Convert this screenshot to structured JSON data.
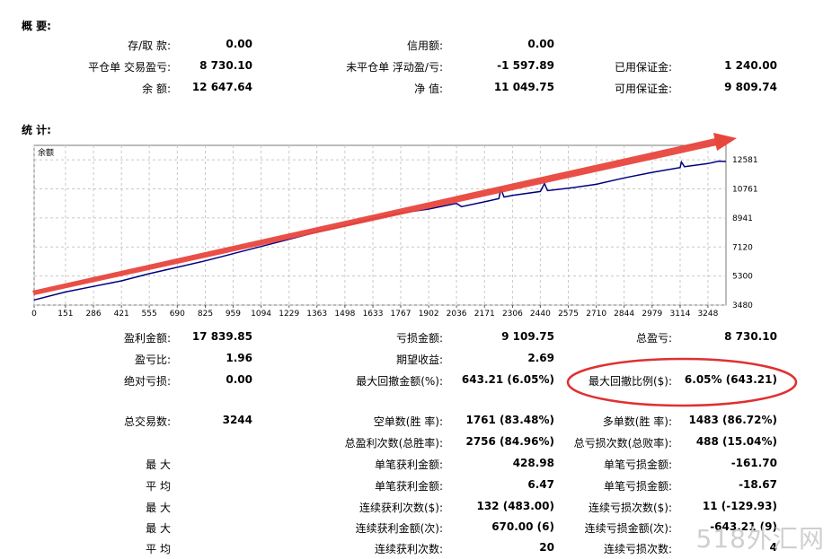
{
  "summary": {
    "title": "概 要:",
    "rows": [
      [
        {
          "label": "存/取 款:",
          "value": "0.00"
        },
        {
          "label": "信用额:",
          "value": "0.00"
        },
        {
          "label": "",
          "value": ""
        }
      ],
      [
        {
          "label": "平仓单 交易盈亏:",
          "value": "8 730.10"
        },
        {
          "label": "未平仓单 浮动盈/亏:",
          "value": "-1 597.89"
        },
        {
          "label": "已用保证金:",
          "value": "1 240.00"
        }
      ],
      [
        {
          "label": "余 额:",
          "value": "12 647.64"
        },
        {
          "label": "净 值:",
          "value": "11 049.75"
        },
        {
          "label": "可用保证金:",
          "value": "9 809.74"
        }
      ]
    ]
  },
  "stats": {
    "title": "统 计:",
    "rows": [
      [
        {
          "label": "盈利金额:",
          "value": "17 839.85"
        },
        {
          "label": "亏损金额:",
          "value": "9 109.75"
        },
        {
          "label": "总盈亏:",
          "value": "8 730.10"
        }
      ],
      [
        {
          "label": "盈亏比:",
          "value": "1.96"
        },
        {
          "label": "期望收益:",
          "value": "2.69"
        },
        {
          "label": "",
          "value": ""
        }
      ],
      [
        {
          "label": "绝对亏损:",
          "value": "0.00"
        },
        {
          "label": "最大回撤金额(%):",
          "value": "643.21 (6.05%)"
        },
        {
          "label": "最大回撤比例($):",
          "value": "6.05% (643.21)"
        }
      ],
      [
        {
          "label": "总交易数:",
          "value": "3244"
        },
        {
          "label": "空单数(胜 率):",
          "value": "1761 (83.48%)"
        },
        {
          "label": "多单数(胜 率):",
          "value": "1483 (86.72%)"
        }
      ],
      [
        {
          "label": "",
          "value": ""
        },
        {
          "label": "总盈利次数(总胜率):",
          "value": "2756 (84.96%)"
        },
        {
          "label": "总亏损次数(总败率):",
          "value": "488 (15.04%)"
        }
      ],
      [
        {
          "label": "最 大",
          "value": ""
        },
        {
          "label": "单笔获利金额:",
          "value": "428.98"
        },
        {
          "label": "单笔亏损金额:",
          "value": "-161.70"
        }
      ],
      [
        {
          "label": "平 均",
          "value": ""
        },
        {
          "label": "单笔获利金额:",
          "value": "6.47"
        },
        {
          "label": "单笔亏损金额:",
          "value": "-18.67"
        }
      ],
      [
        {
          "label": "最 大",
          "value": ""
        },
        {
          "label": "连续获利次数($):",
          "value": "132 (483.00)"
        },
        {
          "label": "连续亏损次数($):",
          "value": "11 (-129.93)"
        }
      ],
      [
        {
          "label": "最 大",
          "value": ""
        },
        {
          "label": "连续获利金额(次):",
          "value": "670.00 (6)"
        },
        {
          "label": "连续亏损金额(次):",
          "value": "-643.21 (9)"
        }
      ],
      [
        {
          "label": "平 均",
          "value": ""
        },
        {
          "label": "连续获利次数:",
          "value": "20"
        },
        {
          "label": "连续亏损次数:",
          "value": "4"
        }
      ]
    ]
  },
  "chart_data": {
    "type": "line",
    "series_label": "余额",
    "x_ticks": [
      "0",
      "151",
      "286",
      "421",
      "555",
      "690",
      "825",
      "959",
      "1094",
      "1229",
      "1363",
      "1498",
      "1633",
      "1767",
      "1902",
      "2036",
      "2171",
      "2306",
      "2440",
      "2575",
      "2710",
      "2844",
      "2979",
      "3114",
      "3248"
    ],
    "y_ticks": [
      "12581",
      "10761",
      "8941",
      "7120",
      "5300",
      "3480"
    ],
    "xlim": [
      0,
      3335
    ],
    "ylim": [
      3480,
      13490
    ],
    "series": [
      {
        "x": [
          0,
          151,
          286,
          421,
          555,
          690,
          825,
          959,
          1094,
          1229,
          1363,
          1498,
          1633,
          1767,
          1902,
          2036,
          2060,
          2171,
          2240,
          2250,
          2265,
          2306,
          2440,
          2460,
          2475,
          2575,
          2710,
          2844,
          2979,
          3114,
          3120,
          3135,
          3248,
          3300,
          3335
        ],
        "y": [
          3800,
          4300,
          4650,
          5000,
          5450,
          5850,
          6250,
          6700,
          7150,
          7600,
          8050,
          8450,
          8900,
          9250,
          9500,
          9850,
          9650,
          9950,
          10150,
          10750,
          10250,
          10350,
          10600,
          11100,
          10650,
          10800,
          11050,
          11450,
          11800,
          12100,
          12450,
          12150,
          12350,
          12500,
          12480
        ]
      }
    ],
    "line_color": "#000080",
    "arrow_color": "#e8463c",
    "highlight_ellipse_color": "#e03030"
  },
  "watermark": "518外汇网"
}
